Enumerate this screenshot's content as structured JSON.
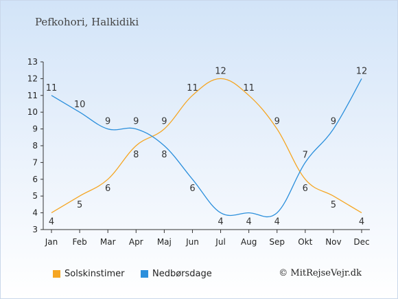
{
  "title": "Pefkohori, Halkidiki",
  "credit": "© MitRejseVejr.dk",
  "chart_data": {
    "type": "line",
    "categories": [
      "Jan",
      "Feb",
      "Mar",
      "Apr",
      "Maj",
      "Jun",
      "Jul",
      "Aug",
      "Sep",
      "Okt",
      "Nov",
      "Dec"
    ],
    "ylim": [
      3,
      13
    ],
    "yticks": [
      3,
      4,
      5,
      6,
      7,
      8,
      9,
      10,
      11,
      12,
      13
    ],
    "series": [
      {
        "name": "Solskinstimer",
        "color": "#f5a623",
        "values": [
          4,
          5,
          6,
          8,
          9,
          11,
          12,
          11,
          9,
          6,
          5,
          4
        ]
      },
      {
        "name": "Nedbørsdage",
        "color": "#2b8fdc",
        "values": [
          11,
          10,
          9,
          9,
          8,
          6,
          4,
          4,
          4,
          7,
          9,
          12
        ]
      }
    ]
  }
}
